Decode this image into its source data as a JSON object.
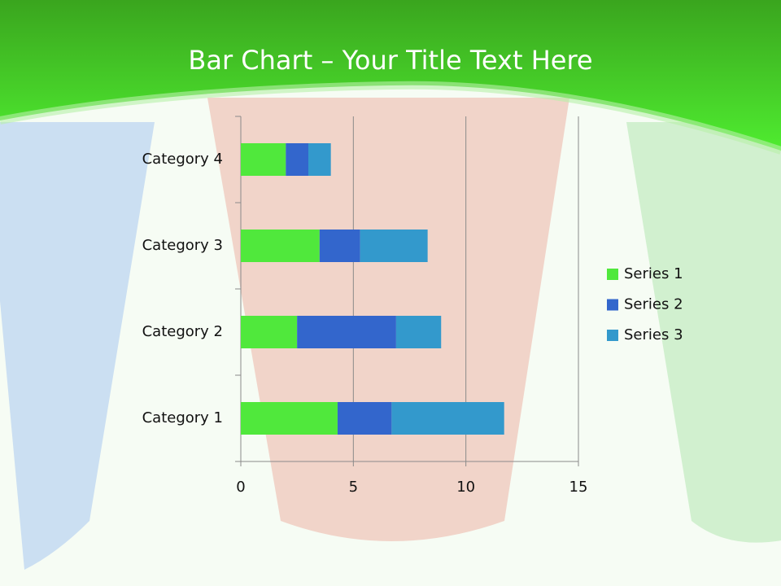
{
  "chart_data": {
    "type": "stacked_bar_horizontal",
    "title": "Bar Chart – Your Title Text Here",
    "categories": [
      "Category 1",
      "Category 2",
      "Category 3",
      "Category 4"
    ],
    "series": [
      {
        "name": "Series 1",
        "color": "#50e83c",
        "values": [
          4.3,
          2.5,
          3.5,
          2
        ]
      },
      {
        "name": "Series 2",
        "color": "#3366cc",
        "values": [
          2.4,
          4.4,
          1.8,
          1
        ]
      },
      {
        "name": "Series 3",
        "color": "#3399cc",
        "values": [
          5,
          2,
          3,
          1
        ]
      }
    ],
    "xlim": [
      0,
      15
    ],
    "xticks": [
      0,
      5,
      10,
      15
    ],
    "grid": true,
    "legend": "right"
  }
}
